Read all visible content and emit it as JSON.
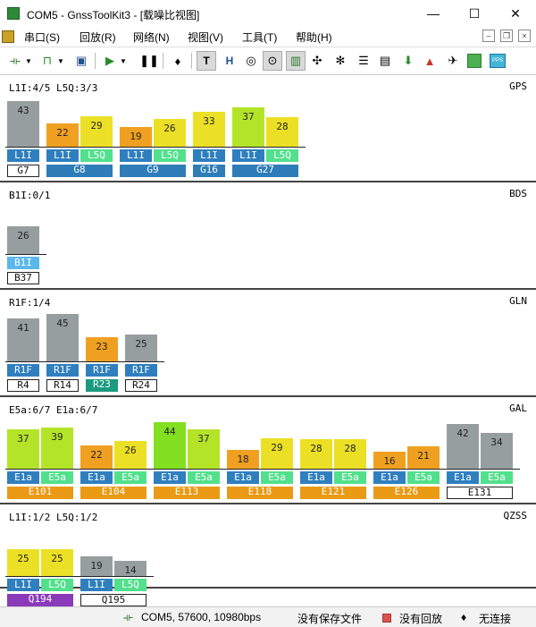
{
  "window": {
    "title": "COM5 - GnssToolKit3 - [载噪比视图]",
    "minimize": "—",
    "maximize": "☐",
    "close": "✕"
  },
  "menu": [
    {
      "label": "串口(S)"
    },
    {
      "label": "回放(R)"
    },
    {
      "label": "网络(N)"
    },
    {
      "label": "视图(V)"
    },
    {
      "label": "工具(T)"
    },
    {
      "label": "帮助(H)"
    }
  ],
  "mdi_buttons": {
    "minimize": "–",
    "restore": "❐",
    "close": "×"
  },
  "toolbar_icons": [
    "connect-icon",
    "wave-icon",
    "save-icon",
    "play-icon",
    "play-dropdown-icon",
    "pause-icon",
    "mic-icon",
    "text-view-icon",
    "hex-view-icon",
    "compass-icon",
    "sky-view-icon",
    "cn0-view-icon",
    "satellite-icon",
    "settings-icon",
    "list-icon",
    "document-icon",
    "download-icon",
    "navigation-icon",
    "bird-icon",
    "green-square-icon",
    "pps-icon"
  ],
  "colors": {
    "gray": "#979ea0",
    "orange": "#f0a020",
    "yellow": "#ece026",
    "ygreen": "#b4e428",
    "green": "#82e020",
    "sig_blue": "#2f7fbf",
    "sig_green": "#52e08c",
    "sig_lightblue": "#5ab8ec",
    "lbl_blue": "#2e7db9",
    "lbl_orange": "#ea9a15",
    "lbl_teal": "#1b9a7f",
    "lbl_purple": "#8a3ab9"
  },
  "panels": [
    {
      "system": "GPS",
      "summary": "L1I:4/5 L5Q:3/3",
      "groups": [
        {
          "label": "G7",
          "label_style": "white",
          "bars": [
            {
              "signal": "L1I",
              "value": 43,
              "color": "gray"
            }
          ]
        },
        {
          "label": "G8",
          "label_style": "blue",
          "bars": [
            {
              "signal": "L1I",
              "value": 22,
              "color": "orange"
            },
            {
              "signal": "L5Q",
              "value": 29,
              "color": "yellow"
            }
          ]
        },
        {
          "label": "G9",
          "label_style": "blue",
          "bars": [
            {
              "signal": "L1I",
              "value": 19,
              "color": "orange"
            },
            {
              "signal": "L5Q",
              "value": 26,
              "color": "yellow"
            }
          ]
        },
        {
          "label": "G16",
          "label_style": "blue",
          "bars": [
            {
              "signal": "L1I",
              "value": 33,
              "color": "yellow"
            }
          ]
        },
        {
          "label": "G27",
          "label_style": "blue",
          "bars": [
            {
              "signal": "L1I",
              "value": 37,
              "color": "ygreen"
            },
            {
              "signal": "L5Q",
              "value": 28,
              "color": "yellow"
            }
          ]
        }
      ]
    },
    {
      "system": "BDS",
      "summary": "B1I:0/1",
      "groups": [
        {
          "label": "B37",
          "label_style": "white",
          "bars": [
            {
              "signal": "B1I",
              "value": 26,
              "color": "gray",
              "sig_color": "sig_lightblue"
            }
          ]
        }
      ]
    },
    {
      "system": "GLN",
      "summary": "R1F:1/4",
      "groups": [
        {
          "label": "R4",
          "label_style": "white",
          "bars": [
            {
              "signal": "R1F",
              "value": 41,
              "color": "gray"
            }
          ]
        },
        {
          "label": "R14",
          "label_style": "white",
          "bars": [
            {
              "signal": "R1F",
              "value": 45,
              "color": "gray"
            }
          ]
        },
        {
          "label": "R23",
          "label_style": "teal",
          "bars": [
            {
              "signal": "R1F",
              "value": 23,
              "color": "orange"
            }
          ]
        },
        {
          "label": "R24",
          "label_style": "white",
          "bars": [
            {
              "signal": "R1F",
              "value": 25,
              "color": "gray"
            }
          ]
        }
      ]
    },
    {
      "system": "GAL",
      "summary": "E5a:6/7 E1a:6/7",
      "groups": [
        {
          "label": "E101",
          "label_style": "orange",
          "bars": [
            {
              "signal": "E1a",
              "value": 37,
              "color": "ygreen"
            },
            {
              "signal": "E5a",
              "value": 39,
              "color": "ygreen"
            }
          ]
        },
        {
          "label": "E104",
          "label_style": "orange",
          "bars": [
            {
              "signal": "E1a",
              "value": 22,
              "color": "orange"
            },
            {
              "signal": "E5a",
              "value": 26,
              "color": "yellow"
            }
          ]
        },
        {
          "label": "E113",
          "label_style": "orange",
          "bars": [
            {
              "signal": "E1a",
              "value": 44,
              "color": "green"
            },
            {
              "signal": "E5a",
              "value": 37,
              "color": "ygreen"
            }
          ]
        },
        {
          "label": "E118",
          "label_style": "orange",
          "bars": [
            {
              "signal": "E1a",
              "value": 18,
              "color": "orange"
            },
            {
              "signal": "E5a",
              "value": 29,
              "color": "yellow"
            }
          ]
        },
        {
          "label": "E121",
          "label_style": "orange",
          "bars": [
            {
              "signal": "E1a",
              "value": 28,
              "color": "yellow"
            },
            {
              "signal": "E5a",
              "value": 28,
              "color": "yellow"
            }
          ]
        },
        {
          "label": "E126",
          "label_style": "orange",
          "bars": [
            {
              "signal": "E1a",
              "value": 16,
              "color": "orange"
            },
            {
              "signal": "E5a",
              "value": 21,
              "color": "orange"
            }
          ]
        },
        {
          "label": "E131",
          "label_style": "white",
          "bars": [
            {
              "signal": "E1a",
              "value": 42,
              "color": "gray"
            },
            {
              "signal": "E5a",
              "value": 34,
              "color": "gray"
            }
          ]
        }
      ]
    },
    {
      "system": "QZSS",
      "summary": "L1I:1/2 L5Q:1/2",
      "groups": [
        {
          "label": "Q194",
          "label_style": "purple",
          "bars": [
            {
              "signal": "L1I",
              "value": 25,
              "color": "yellow"
            },
            {
              "signal": "L5Q",
              "value": 25,
              "color": "yellow"
            }
          ]
        },
        {
          "label": "Q195",
          "label_style": "white",
          "bars": [
            {
              "signal": "L1I",
              "value": 19,
              "color": "gray"
            },
            {
              "signal": "L5Q",
              "value": 14,
              "color": "gray"
            }
          ]
        }
      ]
    }
  ],
  "status": {
    "port": "COM5, 57600, 10980bps",
    "save": "没有保存文件",
    "replay": "没有回放",
    "network": "无连接"
  }
}
